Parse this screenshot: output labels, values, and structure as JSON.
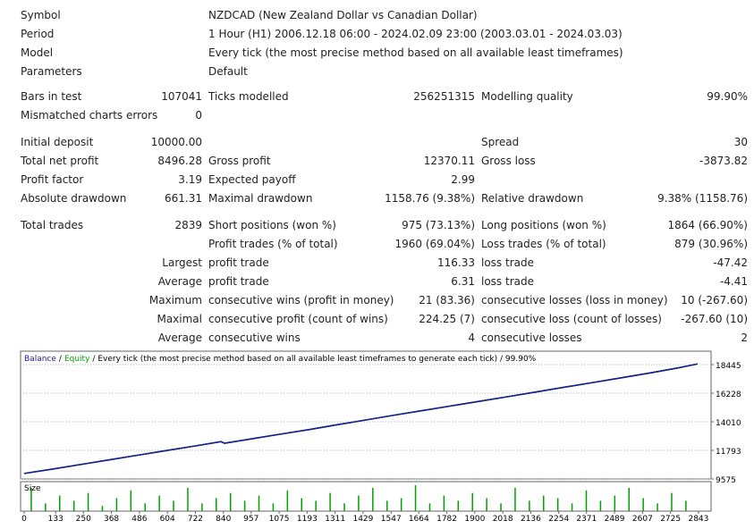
{
  "report": {
    "rows": [
      {
        "l1": "Symbol",
        "l2": "NZDCAD (New Zealand Dollar vs Canadian Dollar)"
      },
      {
        "l1": "Period",
        "l2": "1 Hour (H1) 2006.12.18 06:00 - 2024.02.09 23:00 (2003.03.01 - 2024.03.03)"
      },
      {
        "l1": "Model",
        "l2": "Every tick (the most precise method based on all available least timeframes)"
      },
      {
        "l1": "Parameters",
        "l2": "Default"
      },
      {
        "l1": "Bars in test",
        "v1": "107041",
        "l2": "Ticks modelled",
        "v2": "256251315",
        "l3": "Modelling quality",
        "v3": "99.90%"
      },
      {
        "l1": "Mismatched charts errors",
        "v1": "0"
      },
      {
        "l1": "Initial deposit",
        "v1": "10000.00",
        "l3": "Spread",
        "v3": "30"
      },
      {
        "l1": "Total net profit",
        "v1": "8496.28",
        "l2": "Gross profit",
        "v2": "12370.11",
        "l3": "Gross loss",
        "v3": "-3873.82"
      },
      {
        "l1": "Profit factor",
        "v1": "3.19",
        "l2": "Expected payoff",
        "v2": "2.99"
      },
      {
        "l1": "Absolute drawdown",
        "v1": "661.31",
        "l2": "Maximal drawdown",
        "v2": "1158.76 (9.38%)",
        "l3": "Relative drawdown",
        "v3": "9.38% (1158.76)"
      },
      {
        "l1": "Total trades",
        "v1": "2839",
        "l2": "Short positions (won %)",
        "v2": "975 (73.13%)",
        "l3": "Long positions (won %)",
        "v3": "1864 (66.90%)"
      },
      {
        "l2": "Profit trades (% of total)",
        "v2": "1960 (69.04%)",
        "l3": "Loss trades (% of total)",
        "v3": "879 (30.96%)"
      },
      {
        "v1": "Largest",
        "l2": "profit trade",
        "v2": "116.33",
        "l3": "loss trade",
        "v3": "-47.42"
      },
      {
        "v1": "Average",
        "l2": "profit trade",
        "v2": "6.31",
        "l3": "loss trade",
        "v3": "-4.41"
      },
      {
        "v1": "Maximum",
        "l2": "consecutive wins (profit in money)",
        "v2": "21 (83.36)",
        "l3": "consecutive losses (loss in money)",
        "v3": "10 (-267.60)"
      },
      {
        "v1": "Maximal",
        "l2": "consecutive profit (count of wins)",
        "v2": "224.25 (7)",
        "l3": "consecutive loss (count of losses)",
        "v3": "-267.60 (10)"
      },
      {
        "v1": "Average",
        "l2": "consecutive wins",
        "v2": "4",
        "l3": "consecutive losses",
        "v3": "2"
      }
    ]
  },
  "chart_data": {
    "type": "line",
    "separator": "/",
    "caption": "/ Every tick (the most precise method based on all available least timeframes to generate each tick) / 99.90%",
    "x": [
      0,
      120,
      240,
      360,
      480,
      600,
      720,
      830,
      845,
      960,
      1080,
      1200,
      1320,
      1440,
      1560,
      1680,
      1800,
      1920,
      2040,
      2160,
      2280,
      2400,
      2520,
      2640,
      2760,
      2839
    ],
    "series": [
      {
        "name": "Balance",
        "color": "#1c1c96",
        "values": [
          10000,
          10340,
          10700,
          11060,
          11420,
          11780,
          12130,
          12470,
          12340,
          12690,
          13050,
          13400,
          13780,
          14150,
          14520,
          14880,
          15240,
          15600,
          15960,
          16330,
          16700,
          17060,
          17430,
          17800,
          18200,
          18496
        ]
      },
      {
        "name": "Equity",
        "color": "#00a000",
        "values": [
          10000,
          10340,
          10700,
          11060,
          11420,
          11780,
          12130,
          12470,
          12340,
          12690,
          13050,
          13400,
          13780,
          14150,
          14520,
          14880,
          15240,
          15600,
          15960,
          16330,
          16700,
          17060,
          17430,
          17800,
          18200,
          18496
        ]
      }
    ],
    "xlim": [
      -15,
      2896
    ],
    "ylim": [
      9575,
      19485
    ],
    "xticks": [
      0,
      133,
      250,
      368,
      486,
      604,
      722,
      840,
      957,
      1075,
      1193,
      1311,
      1429,
      1547,
      1664,
      1782,
      1900,
      2018,
      2136,
      2254,
      2371,
      2489,
      2607,
      2725,
      2843
    ],
    "yticks": [
      9575,
      11793,
      14010,
      16228,
      18445
    ],
    "grid": true,
    "size": {
      "label": "Size",
      "color": "#00a000",
      "ylim": [
        0,
        10
      ],
      "x": [
        30,
        90,
        150,
        210,
        270,
        330,
        390,
        450,
        510,
        570,
        630,
        690,
        750,
        810,
        870,
        930,
        990,
        1050,
        1110,
        1170,
        1230,
        1290,
        1350,
        1410,
        1470,
        1530,
        1590,
        1650,
        1710,
        1770,
        1830,
        1890,
        1950,
        2010,
        2070,
        2130,
        2190,
        2250,
        2310,
        2370,
        2430,
        2490,
        2550,
        2610,
        2670,
        2730,
        2790
      ],
      "values": [
        9,
        3,
        6,
        4,
        7,
        2,
        5,
        8,
        3,
        6,
        4,
        9,
        3,
        5,
        7,
        4,
        6,
        3,
        8,
        5,
        4,
        7,
        3,
        6,
        9,
        4,
        5,
        10,
        3,
        6,
        4,
        7,
        5,
        3,
        9,
        4,
        6,
        5,
        3,
        8,
        4,
        6,
        9,
        5,
        3,
        7,
        4
      ]
    }
  }
}
